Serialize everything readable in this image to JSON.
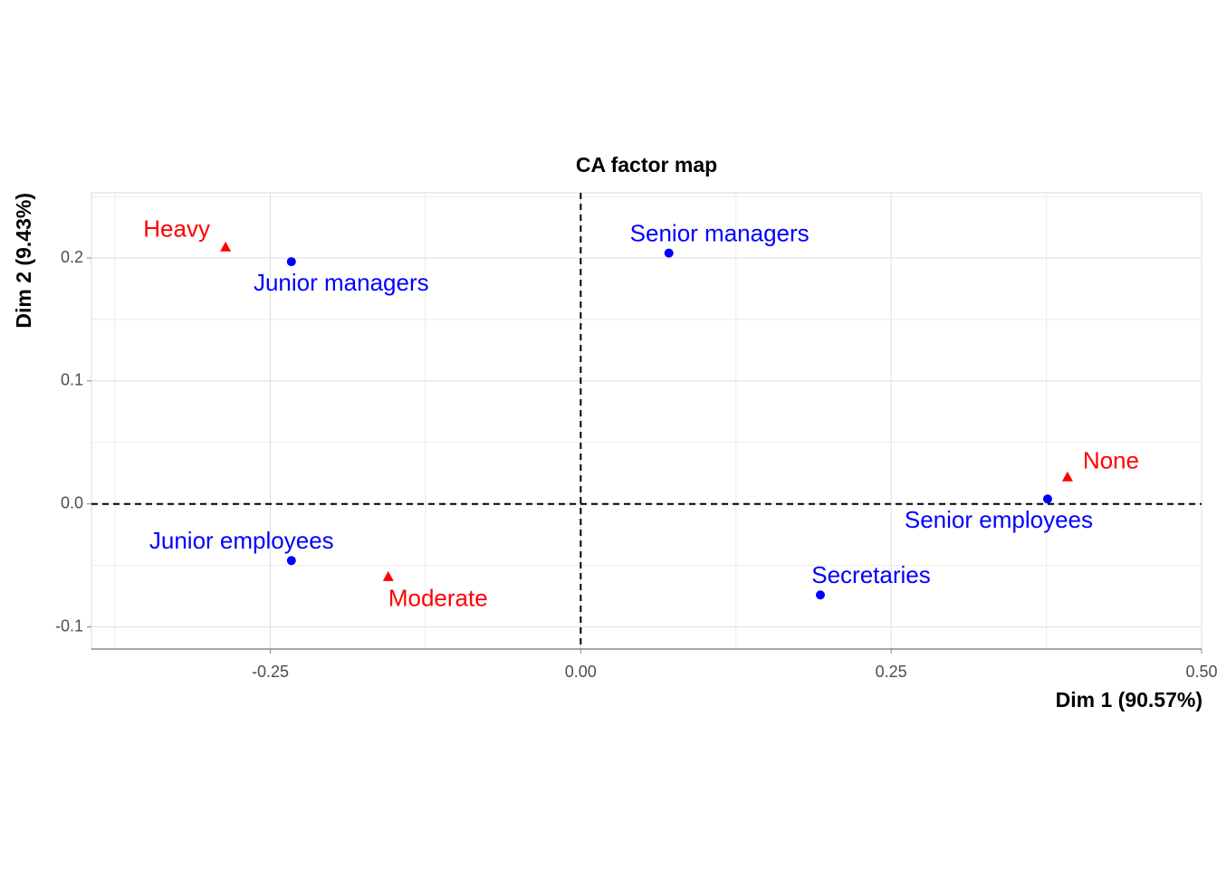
{
  "chart_data": {
    "type": "scatter",
    "title": "CA factor map",
    "x_label": "Dim 1 (90.57%)",
    "y_label": "Dim 2 (9.43%)",
    "xlim": [
      -0.394,
      0.5
    ],
    "ylim": [
      -0.118,
      0.253
    ],
    "xticks": [
      -0.25,
      {
        "value": 0,
        "label": "0.00"
      },
      0.25,
      {
        "value": 0.5,
        "label": "0.50"
      }
    ],
    "yticks": [
      -0.1,
      {
        "value": 0,
        "label": "0.0"
      },
      0.1,
      0.2
    ],
    "grid": true,
    "hline": 0,
    "vline": 0,
    "series": [
      {
        "color": "#0000ff",
        "marker": "circle",
        "labels": [
          "Junior managers",
          "Senior managers",
          "Junior employees",
          "Senior employees",
          "Secretaries"
        ],
        "x": [
          -0.233,
          0.071,
          -0.233,
          0.376,
          0.193
        ],
        "values": [
          0.197,
          0.204,
          -0.046,
          0.004,
          -0.074
        ]
      },
      {
        "color": "#ff0000",
        "marker": "triangle",
        "labels": [
          "Heavy",
          "None",
          "Moderate"
        ],
        "x": [
          -0.286,
          0.392,
          -0.155
        ],
        "values": [
          0.209,
          0.022,
          -0.059
        ]
      }
    ]
  }
}
